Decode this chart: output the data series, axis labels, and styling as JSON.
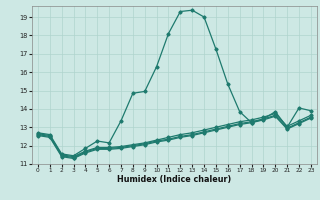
{
  "xlabel": "Humidex (Indice chaleur)",
  "xlim": [
    -0.5,
    23.5
  ],
  "ylim": [
    11,
    19.6
  ],
  "yticks": [
    11,
    12,
    13,
    14,
    15,
    16,
    17,
    18,
    19
  ],
  "xticks": [
    0,
    1,
    2,
    3,
    4,
    5,
    6,
    7,
    8,
    9,
    10,
    11,
    12,
    13,
    14,
    15,
    16,
    17,
    18,
    19,
    20,
    21,
    22,
    23
  ],
  "bg": "#cde8e4",
  "grid_color": "#b0d4ce",
  "lc": "#1e7a6e",
  "lines": [
    [
      12.7,
      12.6,
      11.55,
      11.45,
      11.85,
      12.25,
      12.15,
      13.35,
      14.85,
      14.95,
      16.3,
      18.1,
      19.3,
      19.37,
      19.0,
      17.25,
      15.35,
      13.85,
      13.25,
      13.45,
      13.85,
      13.0,
      14.05,
      13.9
    ],
    [
      12.65,
      12.55,
      11.5,
      11.4,
      11.7,
      11.9,
      11.9,
      11.95,
      12.05,
      12.15,
      12.3,
      12.45,
      12.6,
      12.7,
      12.85,
      13.0,
      13.15,
      13.3,
      13.4,
      13.55,
      13.75,
      13.05,
      13.35,
      13.65
    ],
    [
      12.6,
      12.5,
      11.45,
      11.35,
      11.65,
      11.85,
      11.85,
      11.9,
      12.0,
      12.1,
      12.25,
      12.35,
      12.5,
      12.6,
      12.75,
      12.9,
      13.05,
      13.2,
      13.3,
      13.45,
      13.65,
      12.95,
      13.25,
      13.55
    ],
    [
      12.55,
      12.45,
      11.4,
      11.3,
      11.6,
      11.8,
      11.8,
      11.85,
      11.95,
      12.05,
      12.2,
      12.3,
      12.45,
      12.55,
      12.7,
      12.85,
      13.0,
      13.15,
      13.25,
      13.4,
      13.6,
      12.9,
      13.2,
      13.5
    ]
  ]
}
